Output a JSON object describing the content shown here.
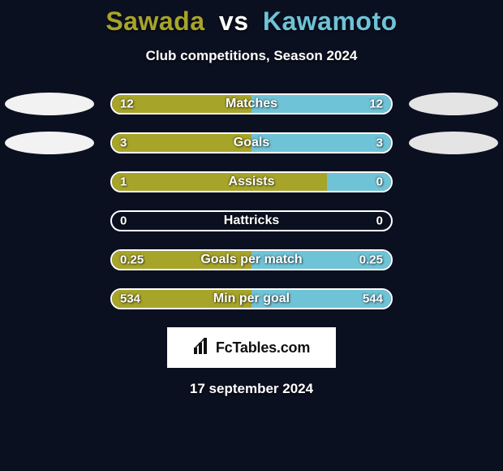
{
  "title": {
    "player1": "Sawada",
    "vs": "vs",
    "player2": "Kawamoto",
    "player1_color": "#a7a42a",
    "vs_color": "#ffffff",
    "player2_color": "#6fc3d6"
  },
  "subtitle": "Club competitions, Season 2024",
  "colors": {
    "left_fill": "#a7a42a",
    "right_fill": "#6fc3d6",
    "track_border": "#ffffff",
    "ellipse_left": "#f2f2f2",
    "ellipse_right": "#e4e4e4",
    "background": "#0b1020"
  },
  "stats": [
    {
      "label": "Matches",
      "left_val": "12",
      "right_val": "12",
      "left_pct": 50,
      "right_pct": 50,
      "show_ellipses": true
    },
    {
      "label": "Goals",
      "left_val": "3",
      "right_val": "3",
      "left_pct": 50,
      "right_pct": 50,
      "show_ellipses": true
    },
    {
      "label": "Assists",
      "left_val": "1",
      "right_val": "0",
      "left_pct": 77,
      "right_pct": 23,
      "show_ellipses": false
    },
    {
      "label": "Hattricks",
      "left_val": "0",
      "right_val": "0",
      "left_pct": 0,
      "right_pct": 0,
      "show_ellipses": false
    },
    {
      "label": "Goals per match",
      "left_val": "0.25",
      "right_val": "0.25",
      "left_pct": 50,
      "right_pct": 50,
      "show_ellipses": false
    },
    {
      "label": "Min per goal",
      "left_val": "534",
      "right_val": "544",
      "left_pct": 50,
      "right_pct": 50,
      "show_ellipses": false
    }
  ],
  "footer": {
    "brand": "FcTables.com",
    "date": "17 september 2024"
  }
}
